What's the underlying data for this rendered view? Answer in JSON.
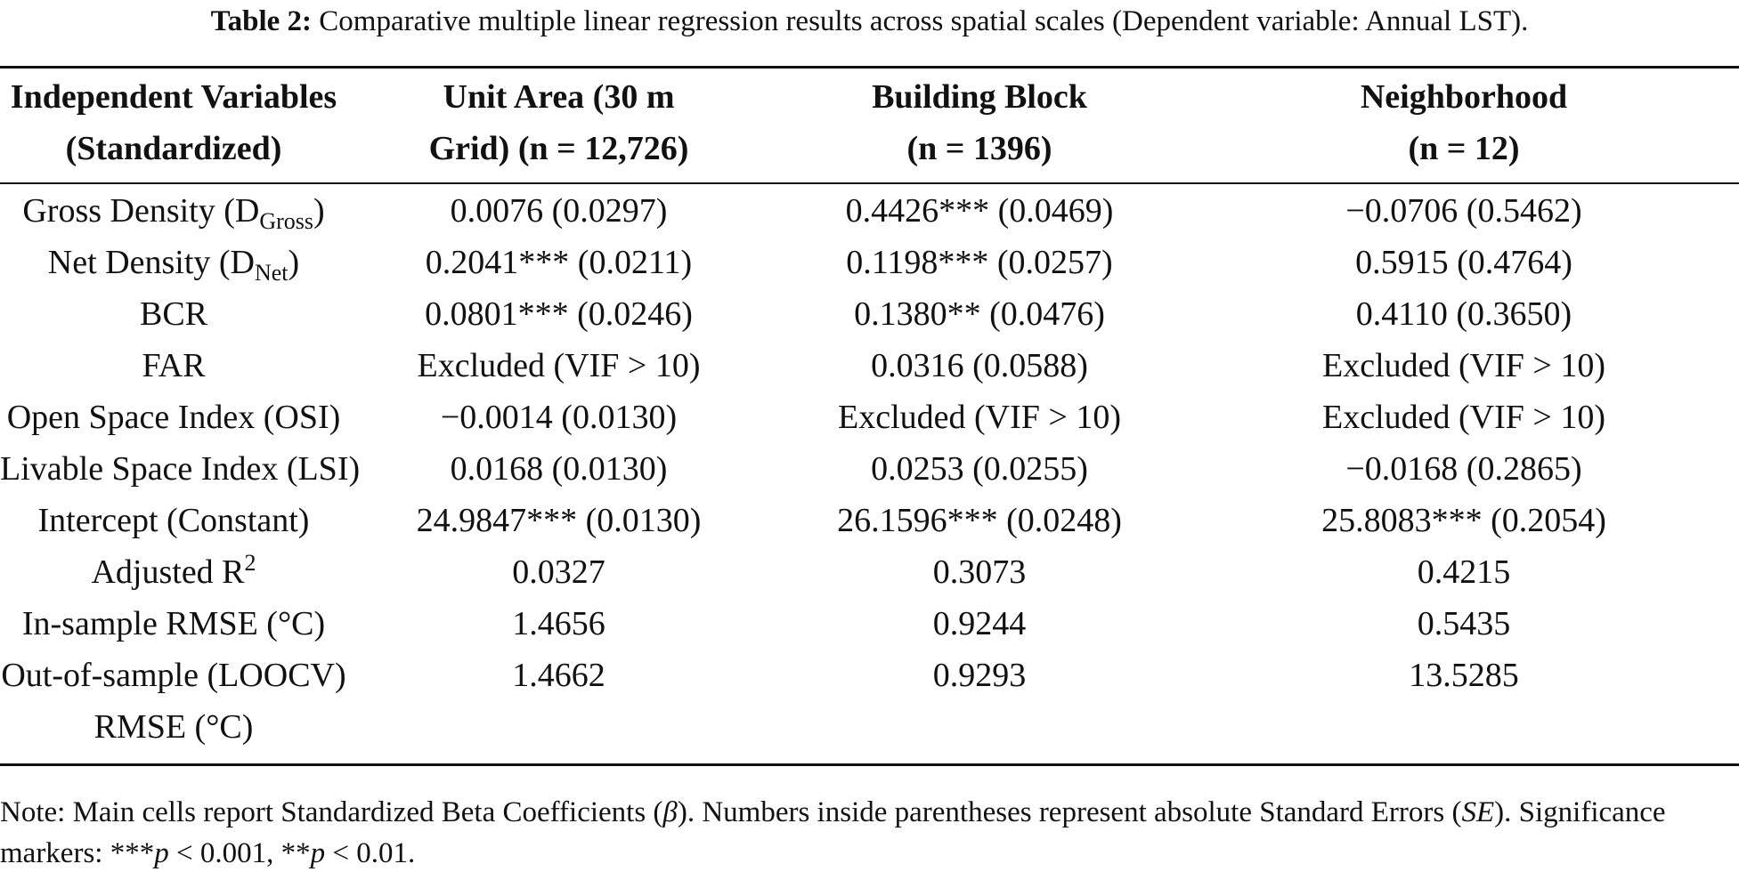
{
  "caption": {
    "label": "Table 2:",
    "text": "Comparative multiple linear regression results across spatial scales (Dependent variable: Annual LST)."
  },
  "headers": [
    {
      "line1": "Independent Variables",
      "line2": "(Standardized)"
    },
    {
      "line1": "Unit Area (30 m",
      "line2": "Grid) (n = 12,726)"
    },
    {
      "line1": "Building Block",
      "line2": "(n = 1396)"
    },
    {
      "line1": "Neighborhood",
      "line2": "(n = 12)"
    }
  ],
  "rows": [
    {
      "var": {
        "pre": "Gross Density (D",
        "sub": "Gross",
        "post": ")"
      },
      "c1": "0.0076 (0.0297)",
      "c2": "0.4426*** (0.0469)",
      "c3": "−0.0706 (0.5462)"
    },
    {
      "var": {
        "pre": "Net Density (D",
        "sub": "Net",
        "post": ")"
      },
      "c1": "0.2041*** (0.0211)",
      "c2": "0.1198*** (0.0257)",
      "c3": "0.5915 (0.4764)"
    },
    {
      "var": {
        "pre": "BCR"
      },
      "c1": "0.0801*** (0.0246)",
      "c2": "0.1380** (0.0476)",
      "c3": "0.4110 (0.3650)"
    },
    {
      "var": {
        "pre": "FAR"
      },
      "c1": "Excluded (VIF > 10)",
      "c2": "0.0316 (0.0588)",
      "c3": "Excluded (VIF > 10)"
    },
    {
      "var": {
        "pre": "Open Space Index (OSI)"
      },
      "c1": "−0.0014 (0.0130)",
      "c2": "Excluded (VIF > 10)",
      "c3": "Excluded (VIF > 10)"
    },
    {
      "var": {
        "pre": "Livable Space Index (LSI)"
      },
      "c1": "0.0168 (0.0130)",
      "c2": "0.0253 (0.0255)",
      "c3": "−0.0168 (0.2865)"
    },
    {
      "var": {
        "pre": "Intercept (Constant)"
      },
      "c1": "24.9847*** (0.0130)",
      "c2": "26.1596*** (0.0248)",
      "c3": "25.8083*** (0.2054)"
    },
    {
      "var": {
        "pre": "Adjusted R",
        "sup": "2"
      },
      "c1": "0.0327",
      "c2": "0.3073",
      "c3": "0.4215"
    },
    {
      "var": {
        "pre": "In-sample RMSE (°C)"
      },
      "c1": "1.4656",
      "c2": "0.9244",
      "c3": "0.5435"
    },
    {
      "var": {
        "pre": "Out-of-sample (LOOCV)",
        "line2": "RMSE (°C)"
      },
      "c1": "1.4662",
      "c2": "0.9293",
      "c3": "13.5285"
    }
  ],
  "note": {
    "t1": "Note: Main cells report Standardized Beta Coefficients (",
    "beta": "β",
    "t2": "). Numbers inside parentheses represent absolute Standard Errors (",
    "se": "SE",
    "t3": "). Significance markers: ***",
    "p1": "p",
    "t4": " < 0.001, **",
    "p2": "p",
    "t5": " < 0.01."
  }
}
